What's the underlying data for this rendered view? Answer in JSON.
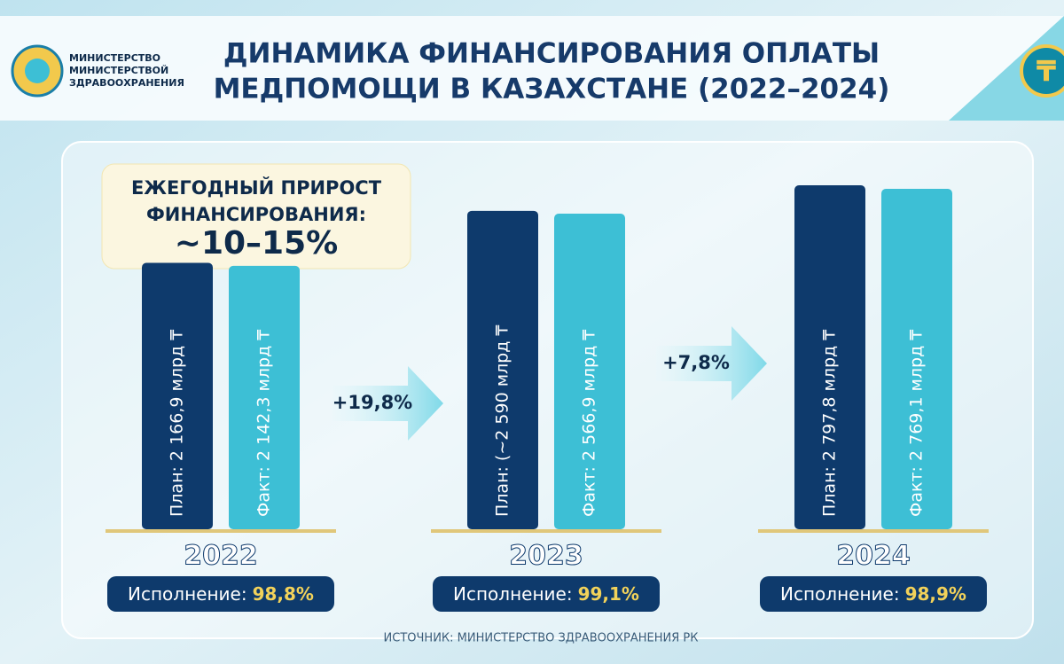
{
  "chart_data": {
    "type": "bar",
    "header_org": [
      "МИНИСТЕРСТВО",
      "МИНИСТЕРСТВОЙ",
      "ЗДРАВООХРАНЕНИЯ"
    ],
    "title": [
      "ДИНАМИКА ФИНАНСИРОВАНИЯ ОПЛАТЫ",
      "МЕДПОМОЩИ В КАЗАХСТАНЕ (2022–2024)"
    ],
    "currency_icon": "₸",
    "callout": {
      "lines": [
        "ЕЖЕГОДНЫЙ ПРИРОСТ",
        "ФИНАНСИРОВАНИЯ:"
      ],
      "value": "~10–15%"
    },
    "categories": [
      "2022",
      "2023",
      "2024"
    ],
    "series": [
      {
        "color": "#0e3a6c",
        "values": [
          2166.9,
          2590,
          2797.8
        ],
        "value_labels": [
          "План: 2 166,9 млрд ₸",
          "План: (~2 590 млрд ₸",
          "План: 2 797,8 млрд ₸"
        ]
      },
      {
        "color": "#3dbfd5",
        "values": [
          2142.3,
          2566.9,
          2769.1
        ],
        "value_labels": [
          "Факт: 2 142,3 млрд ₸",
          "Факт: 2 566,9 млрд ₸",
          "Факт: 2 769,1 млрд ₸"
        ]
      }
    ],
    "growth": [
      "+19,8%",
      "+7,8%"
    ],
    "execution": [
      {
        "label": "Исполнение:",
        "value": "98,8%"
      },
      {
        "label": "Исполнение:",
        "value": "99,1%"
      },
      {
        "label": "Исполнение:",
        "value": "98,9%"
      }
    ],
    "source": "ИСТОЧНИК: МИНИСТЕРСТВО ЗДРАВООХРАНЕНИЯ РК"
  }
}
